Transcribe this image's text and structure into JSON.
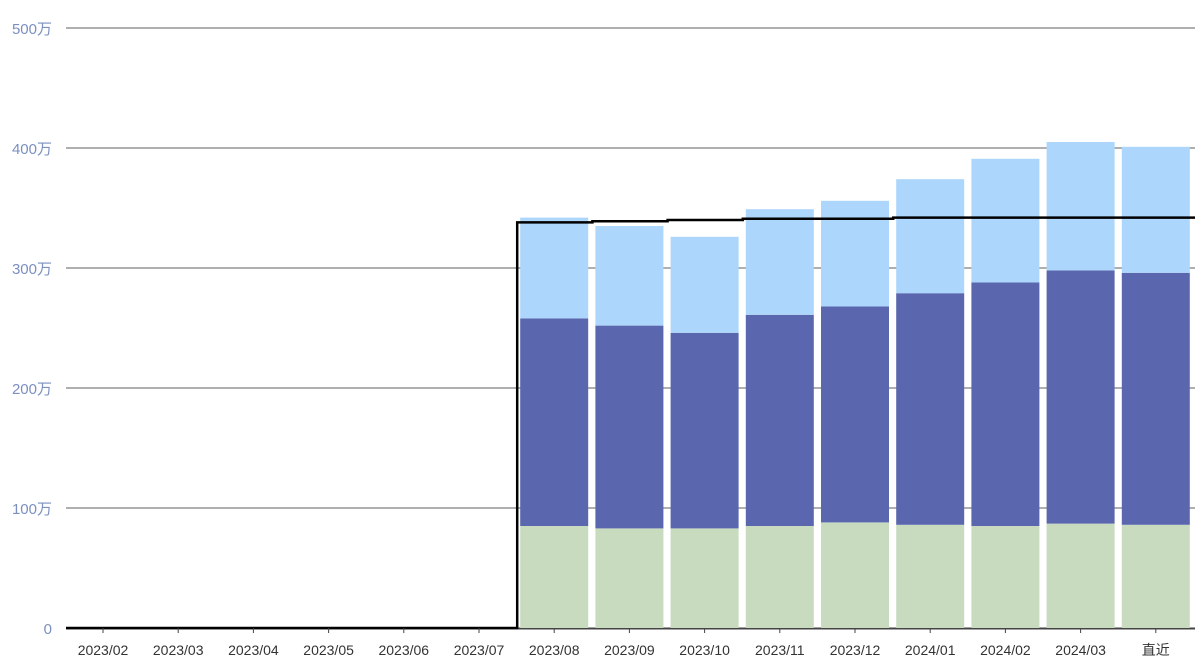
{
  "chart_data": {
    "type": "bar",
    "stacked": true,
    "title": "",
    "xlabel": "",
    "ylabel": "",
    "ylim": [
      0,
      5000000
    ],
    "yticks": [
      {
        "value": 0,
        "label": "0"
      },
      {
        "value": 1000000,
        "label": "100万"
      },
      {
        "value": 2000000,
        "label": "200万"
      },
      {
        "value": 3000000,
        "label": "300万"
      },
      {
        "value": 4000000,
        "label": "400万"
      },
      {
        "value": 5000000,
        "label": "500万"
      }
    ],
    "grid": true,
    "legend": "none",
    "categories": [
      "2023/02",
      "2023/03",
      "2023/04",
      "2023/05",
      "2023/06",
      "2023/07",
      "2023/08",
      "2023/09",
      "2023/10",
      "2023/11",
      "2023/12",
      "2024/01",
      "2024/02",
      "2024/03",
      "直近"
    ],
    "series": [
      {
        "color": "#c8dbbf",
        "values": [
          0,
          0,
          0,
          0,
          0,
          0,
          850000,
          830000,
          830000,
          850000,
          880000,
          860000,
          850000,
          870000,
          860000
        ]
      },
      {
        "color": "#5a66ae",
        "values": [
          0,
          0,
          0,
          0,
          0,
          0,
          1730000,
          1690000,
          1630000,
          1760000,
          1800000,
          1930000,
          2030000,
          2110000,
          2100000
        ]
      },
      {
        "color": "#acd6fb",
        "values": [
          0,
          0,
          0,
          0,
          0,
          0,
          840000,
          830000,
          800000,
          880000,
          880000,
          950000,
          1030000,
          1070000,
          1050000
        ]
      }
    ],
    "line": {
      "color": "#000000",
      "style": "step",
      "values": [
        0,
        0,
        0,
        0,
        0,
        0,
        3380000,
        3390000,
        3400000,
        3410000,
        3410000,
        3420000,
        3420000,
        3420000,
        3420000
      ]
    },
    "colors": {
      "grid": "#7f7f7f",
      "ytick_text": "#7b8fc0",
      "xtick_text": "#333333",
      "axis": "#444444"
    }
  }
}
